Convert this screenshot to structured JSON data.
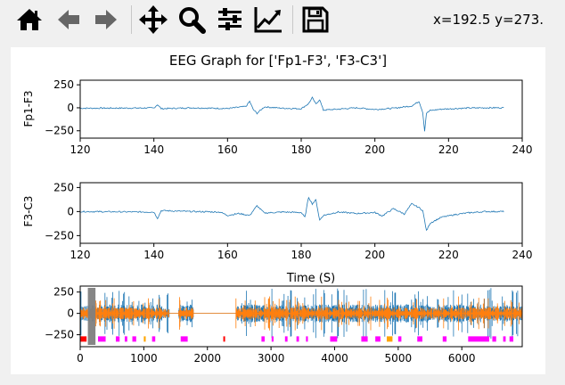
{
  "toolbar": {
    "buttons": [
      {
        "name": "home-icon",
        "label": "Home"
      },
      {
        "name": "back-icon",
        "label": "Back"
      },
      {
        "name": "forward-icon",
        "label": "Forward"
      },
      {
        "name": "pan-icon",
        "label": "Pan"
      },
      {
        "name": "zoom-icon",
        "label": "Zoom"
      },
      {
        "name": "configure-subplots-icon",
        "label": "Subplots"
      },
      {
        "name": "edit-axis-icon",
        "label": "Customize"
      },
      {
        "name": "save-icon",
        "label": "Save"
      }
    ],
    "coords": "x=192.5 y=273."
  },
  "chart_data": [
    {
      "type": "line",
      "title": "EEG Graph for ['Fp1-F3', 'F3-C3']",
      "ylabel": "Fp1-F3",
      "xlim": [
        120,
        240
      ],
      "ylim": [
        -330,
        300
      ],
      "xticks": [
        "120",
        "140",
        "160",
        "180",
        "200",
        "220",
        "240"
      ],
      "yticks": [
        "250",
        "0",
        "−250"
      ],
      "series": [
        {
          "color": "#1f77b4",
          "x": [
            120,
            140,
            141,
            142,
            150,
            160,
            165,
            166,
            167,
            168,
            170,
            175,
            180,
            182,
            183,
            184,
            185,
            186,
            190,
            195,
            200,
            205,
            210,
            212,
            213,
            213.5,
            214,
            215,
            218,
            222,
            225,
            230,
            234,
            235
          ],
          "y": [
            -5,
            -2,
            35,
            -10,
            0,
            -8,
            15,
            70,
            -20,
            -60,
            10,
            -5,
            -10,
            45,
            110,
            40,
            90,
            -25,
            -15,
            0,
            -18,
            -5,
            20,
            70,
            -50,
            -250,
            -60,
            -30,
            -15,
            -8,
            -3,
            0,
            0,
            0
          ]
        }
      ]
    },
    {
      "type": "line",
      "xlabel": "Time (S)",
      "ylabel": "F3-C3",
      "xlim": [
        120,
        240
      ],
      "ylim": [
        -330,
        300
      ],
      "xticks": [
        "120",
        "140",
        "160",
        "180",
        "200",
        "220",
        "240"
      ],
      "yticks": [
        "250",
        "0",
        "−250"
      ],
      "series": [
        {
          "color": "#1f77b4",
          "x": [
            120,
            140,
            141,
            142,
            150,
            158,
            160,
            163,
            166,
            168,
            170,
            175,
            180,
            181,
            182,
            183,
            184,
            185,
            186,
            190,
            195,
            200,
            202,
            205,
            208,
            210,
            212,
            213,
            214,
            215,
            218,
            222,
            225,
            230,
            234,
            235
          ],
          "y": [
            0,
            -5,
            -70,
            10,
            0,
            -5,
            -40,
            -20,
            -40,
            60,
            -15,
            -5,
            -10,
            -60,
            150,
            80,
            120,
            -90,
            -40,
            -5,
            -20,
            -10,
            -45,
            30,
            -25,
            80,
            40,
            10,
            -200,
            -120,
            -60,
            -30,
            -15,
            0,
            0,
            0
          ]
        }
      ]
    },
    {
      "type": "line",
      "xlim": [
        0,
        6950
      ],
      "ylim": [
        -390,
        320
      ],
      "xticks": [
        "0",
        "1000",
        "2000",
        "3000",
        "4000",
        "5000",
        "6000"
      ],
      "yticks": [
        "250",
        "0",
        "−250"
      ],
      "segments": [
        [
          0,
          1400
        ],
        [
          1550,
          1780
        ],
        [
          2450,
          6950
        ]
      ],
      "series": [
        {
          "color": "#1f77b4",
          "amplitude": 300
        },
        {
          "color": "#ff7f0e",
          "amplitude": 200
        }
      ],
      "selection": {
        "x": [
          120,
          240
        ],
        "color": "#808080"
      },
      "annotations": [
        {
          "x": 0,
          "w": 100,
          "color": "#ff0000"
        },
        {
          "x": 280,
          "w": 120,
          "color": "#ff00ff"
        },
        {
          "x": 560,
          "w": 60,
          "color": "#ff00ff"
        },
        {
          "x": 700,
          "w": 40,
          "color": "#ff00ff"
        },
        {
          "x": 820,
          "w": 60,
          "color": "#ff00ff"
        },
        {
          "x": 1000,
          "w": 30,
          "color": "#ffa500"
        },
        {
          "x": 1130,
          "w": 50,
          "color": "#ff00ff"
        },
        {
          "x": 1580,
          "w": 110,
          "color": "#ff00ff"
        },
        {
          "x": 2250,
          "w": 20,
          "color": "#ff0000"
        },
        {
          "x": 2850,
          "w": 50,
          "color": "#ff00ff"
        },
        {
          "x": 3010,
          "w": 30,
          "color": "#ff00ff"
        },
        {
          "x": 3220,
          "w": 40,
          "color": "#ff00ff"
        },
        {
          "x": 3400,
          "w": 40,
          "color": "#ff00ff"
        },
        {
          "x": 3550,
          "w": 30,
          "color": "#ff00ff"
        },
        {
          "x": 3930,
          "w": 110,
          "color": "#ff00ff"
        },
        {
          "x": 4420,
          "w": 100,
          "color": "#ff00ff"
        },
        {
          "x": 4640,
          "w": 80,
          "color": "#ff00ff"
        },
        {
          "x": 4820,
          "w": 90,
          "color": "#ffa500"
        },
        {
          "x": 5000,
          "w": 50,
          "color": "#ff00ff"
        },
        {
          "x": 5300,
          "w": 80,
          "color": "#ff00ff"
        },
        {
          "x": 5700,
          "w": 60,
          "color": "#ff00ff"
        },
        {
          "x": 6100,
          "w": 330,
          "color": "#ff00ff"
        },
        {
          "x": 6480,
          "w": 60,
          "color": "#ff00ff"
        },
        {
          "x": 6650,
          "w": 40,
          "color": "#ff00ff"
        },
        {
          "x": 6750,
          "w": 60,
          "color": "#ff00ff"
        }
      ]
    }
  ]
}
